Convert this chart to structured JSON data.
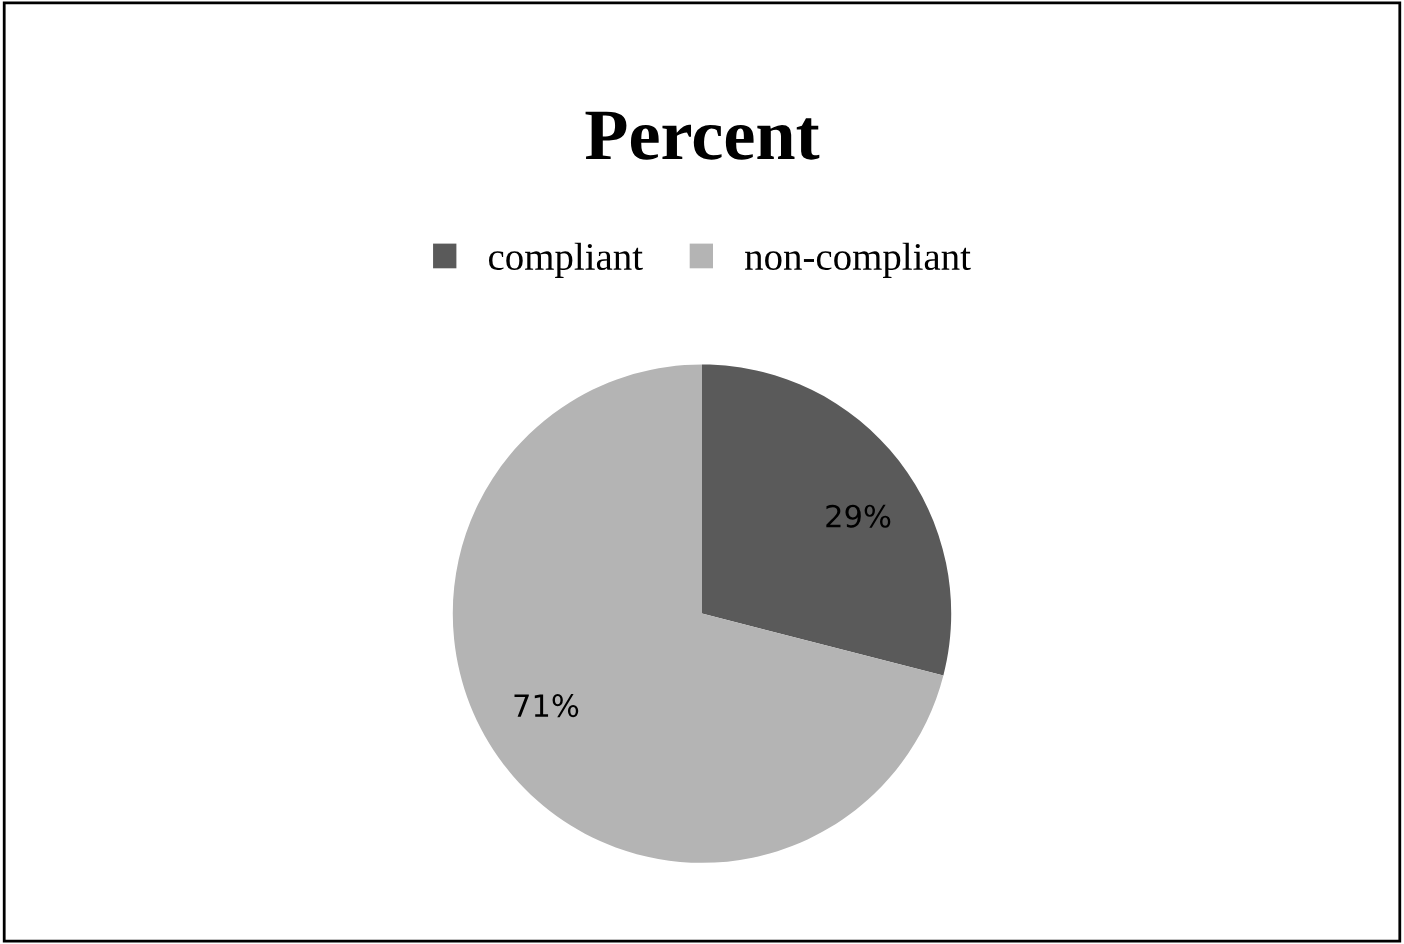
{
  "chart_data": {
    "type": "pie",
    "title": "Percent",
    "categories": [
      "compliant",
      "non-compliant"
    ],
    "values": [
      29,
      71
    ],
    "colors": [
      "#5a5a5a",
      "#b4b4b4"
    ],
    "value_labels": [
      "29%",
      "71%"
    ],
    "legend": "top"
  }
}
